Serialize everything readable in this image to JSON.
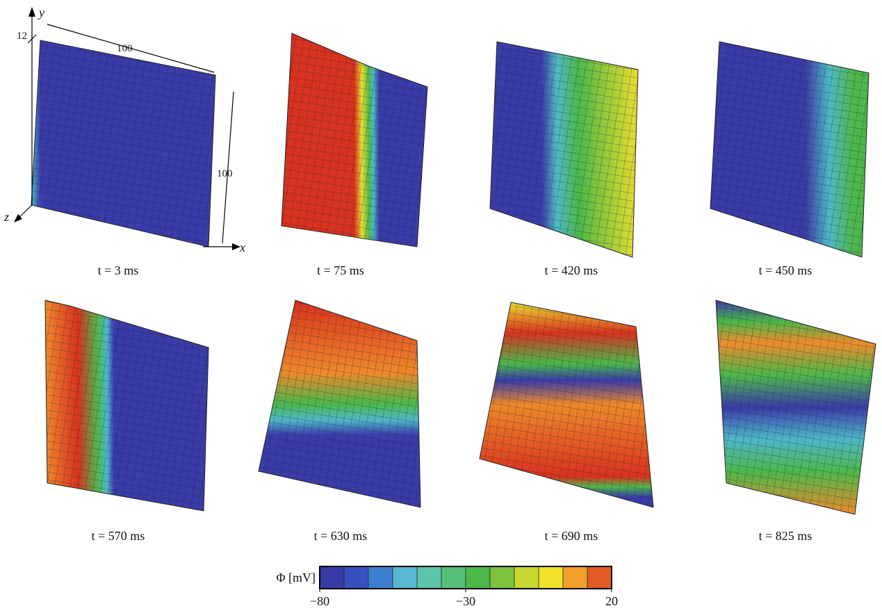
{
  "figure": {
    "panels": [
      {
        "caption": "t = 3 ms"
      },
      {
        "caption": "t = 75 ms"
      },
      {
        "caption": "t = 420 ms"
      },
      {
        "caption": "t = 450 ms"
      },
      {
        "caption": "t = 570 ms"
      },
      {
        "caption": "t = 630 ms"
      },
      {
        "caption": "t = 690 ms"
      },
      {
        "caption": "t = 825 ms"
      }
    ],
    "dimensions": {
      "depth": "12",
      "width": "100",
      "height": "100"
    },
    "axes": {
      "x": "x",
      "y": "y",
      "z": "z"
    },
    "colorbar": {
      "label": "Φ [mV]",
      "lim": [
        -80,
        20
      ],
      "ticks": [
        {
          "value": -80,
          "label": "−80"
        },
        {
          "value": -30,
          "label": "−30"
        },
        {
          "value": 20,
          "label": "20"
        }
      ],
      "colors": [
        "#3a3aa6",
        "#3650c0",
        "#3c7fd0",
        "#56b8d2",
        "#5cc4a8",
        "#56bf78",
        "#4cb84a",
        "#7cc23c",
        "#c8d830",
        "#f0e02a",
        "#f0a02a",
        "#e35a24"
      ]
    }
  }
}
